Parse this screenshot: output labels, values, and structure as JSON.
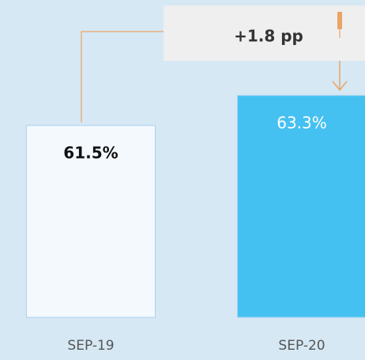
{
  "chart_data": {
    "type": "bar",
    "categories": [
      "SEP-19",
      "SEP-20"
    ],
    "values": [
      61.5,
      63.3
    ],
    "value_labels": [
      "61.5%",
      "63.3%"
    ],
    "colors": [
      "#f4f9fe",
      "#45c1f1"
    ],
    "label_colors": [
      "#111111",
      "#ffffff"
    ],
    "ylim": [
      50,
      65
    ],
    "annotation": "+1.8 pp"
  }
}
